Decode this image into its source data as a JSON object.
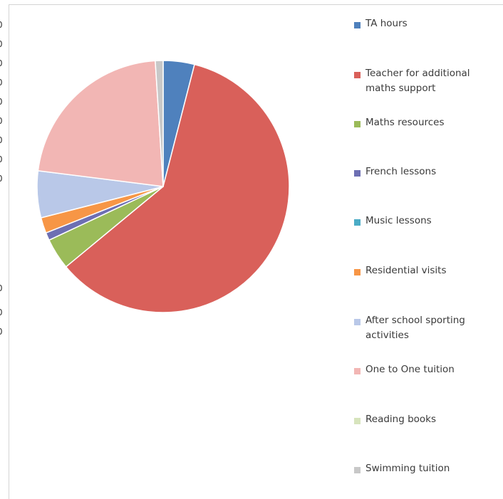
{
  "chart_data": {
    "type": "pie",
    "title": "",
    "legend_position": "right",
    "series": [
      {
        "name": "TA hours",
        "value": 4,
        "color": "#4f81bd"
      },
      {
        "name": "Teacher for additional maths support",
        "value": 60,
        "color": "#d9605a"
      },
      {
        "name": "Maths resources",
        "value": 4,
        "color": "#9bbb59"
      },
      {
        "name": "French lessons",
        "value": 1,
        "color": "#6d6fb3"
      },
      {
        "name": "Music lessons",
        "value": 0,
        "color": "#4bacc6"
      },
      {
        "name": "Residential visits",
        "value": 2,
        "color": "#f79646"
      },
      {
        "name": "After school sporting activities",
        "value": 6,
        "color": "#b9c8e8"
      },
      {
        "name": "One to One tuition",
        "value": 22,
        "color": "#f2b6b4"
      },
      {
        "name": "Reading books",
        "value": 0,
        "color": "#d7e4bd"
      },
      {
        "name": "Swimming tuition",
        "value": 1,
        "color": "#c8c8c8"
      }
    ]
  },
  "left_axis_fragments": [
    "0",
    "0",
    "0",
    "0",
    "0",
    "0",
    "0",
    "0",
    "0",
    "0",
    "0",
    "0"
  ]
}
